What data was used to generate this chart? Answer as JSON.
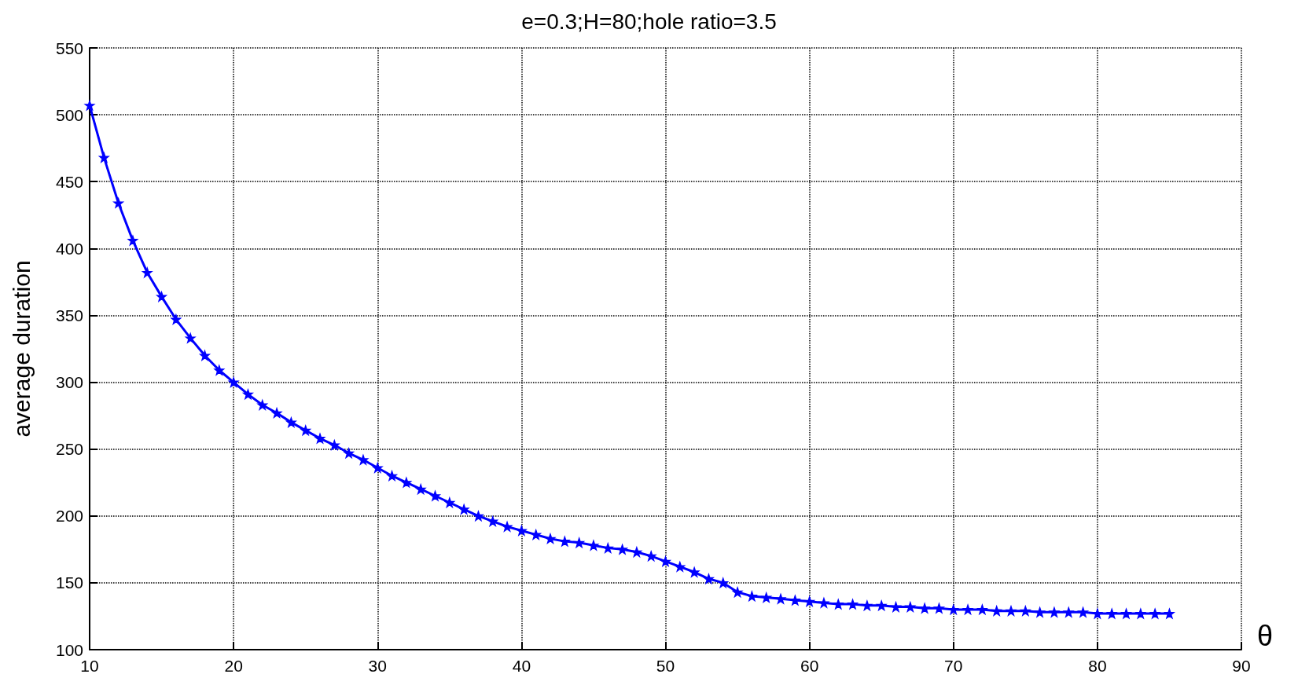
{
  "chart_data": {
    "type": "line",
    "title": "e=0.3;H=80;hole ratio=3.5",
    "xlabel": "θ",
    "ylabel": "average duration",
    "x": [
      10,
      11,
      12,
      13,
      14,
      15,
      16,
      17,
      18,
      19,
      20,
      21,
      22,
      23,
      24,
      25,
      26,
      27,
      28,
      29,
      30,
      31,
      32,
      33,
      34,
      35,
      36,
      37,
      38,
      39,
      40,
      41,
      42,
      43,
      44,
      45,
      46,
      47,
      48,
      49,
      50,
      51,
      52,
      53,
      54,
      55,
      56,
      57,
      58,
      59,
      60,
      61,
      62,
      63,
      64,
      65,
      66,
      67,
      68,
      69,
      70,
      71,
      72,
      73,
      74,
      75,
      76,
      77,
      78,
      79,
      80,
      81,
      82,
      83,
      84,
      85
    ],
    "series": [
      {
        "color": "#0000ff",
        "values": [
          507,
          468,
          434,
          406,
          382,
          364,
          347,
          333,
          320,
          309,
          300,
          291,
          283,
          277,
          270,
          264,
          258,
          253,
          247,
          242,
          236,
          230,
          225,
          220,
          215,
          210,
          205,
          200,
          196,
          192,
          189,
          186,
          183,
          181,
          180,
          178,
          176,
          175,
          173,
          170,
          166,
          162,
          158,
          153,
          150,
          143,
          140,
          139,
          138,
          137,
          136,
          135,
          134,
          134,
          133,
          133,
          132,
          132,
          131,
          131,
          130,
          130,
          130,
          129,
          129,
          129,
          128,
          128,
          128,
          128,
          127,
          127,
          127,
          127,
          127,
          127
        ]
      }
    ],
    "xlim": [
      10,
      90
    ],
    "xticks": [
      10,
      20,
      30,
      40,
      50,
      60,
      70,
      80,
      90
    ],
    "ylim": [
      100,
      550
    ],
    "yticks": [
      100,
      150,
      200,
      250,
      300,
      350,
      400,
      450,
      500,
      550
    ],
    "grid": true,
    "marker": "star",
    "line_style": "solid"
  }
}
